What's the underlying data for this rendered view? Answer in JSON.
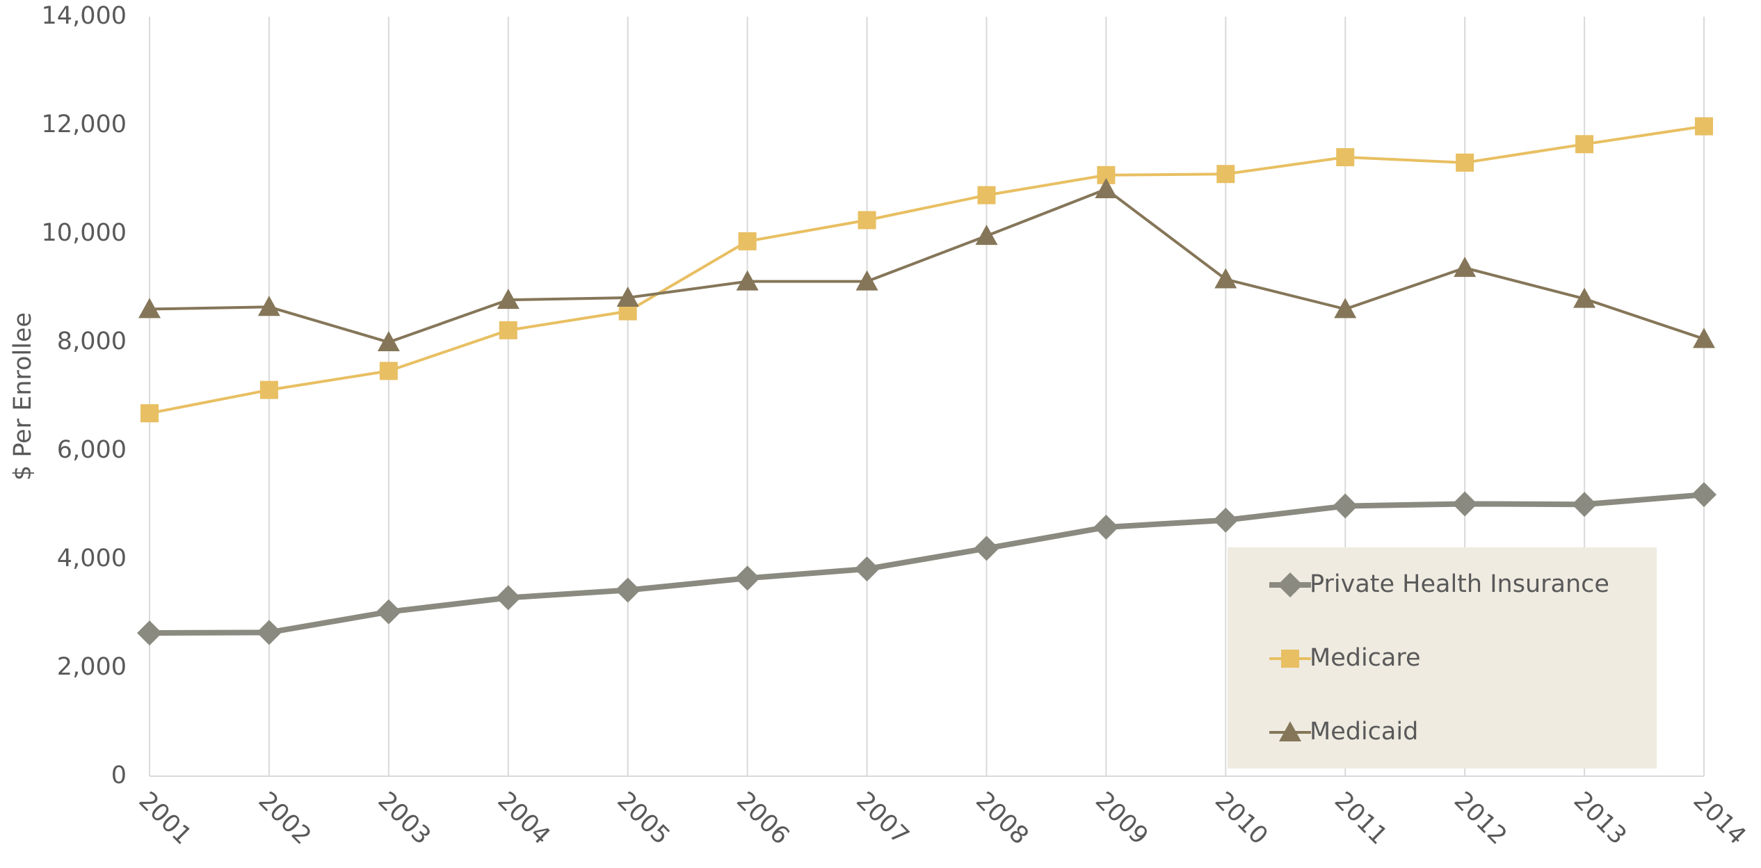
{
  "chart_data": {
    "type": "line",
    "y_label": "$ Per Enrollee",
    "categories": [
      "2001",
      "2002",
      "2003",
      "2004",
      "2005",
      "2006",
      "2007",
      "2008",
      "2009",
      "2010",
      "2011",
      "2012",
      "2013",
      "2014"
    ],
    "series": [
      {
        "name": "Private Health Insurance",
        "color": "#8a8a80",
        "marker": "diamond",
        "values": [
          2640,
          2650,
          3030,
          3290,
          3430,
          3650,
          3820,
          4200,
          4590,
          4720,
          4980,
          5020,
          5010,
          5190
        ]
      },
      {
        "name": "Medicare",
        "color": "#e8bf62",
        "marker": "square",
        "values": [
          6690,
          7120,
          7470,
          8220,
          8570,
          9860,
          10250,
          10710,
          11080,
          11100,
          11410,
          11310,
          11650,
          11980
        ]
      },
      {
        "name": "Medicaid",
        "color": "#857659",
        "marker": "triangle",
        "values": [
          8610,
          8650,
          8000,
          8780,
          8820,
          9120,
          9120,
          9960,
          10820,
          9160,
          8610,
          9370,
          8800,
          8060
        ]
      }
    ],
    "ylim": [
      0,
      14000
    ],
    "yticks": [
      0,
      {
        "value": 2000,
        "label": "2,000"
      },
      {
        "value": 4000,
        "label": "4,000"
      },
      {
        "value": 6000,
        "label": "6,000"
      },
      {
        "value": 8000,
        "label": "8,000"
      },
      {
        "value": 10000,
        "label": "10,000"
      },
      {
        "value": 12000,
        "label": "12,000"
      },
      {
        "value": 14000,
        "label": "14,000"
      }
    ],
    "grid": true,
    "legend_position": "lower right"
  }
}
